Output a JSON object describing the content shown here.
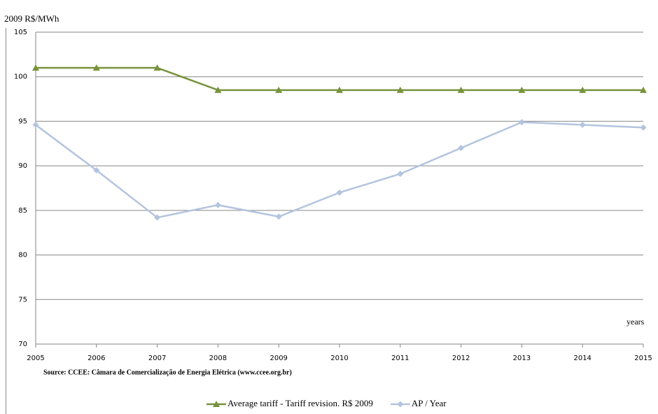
{
  "chart_data": {
    "type": "line",
    "y_label": "2009 R$/MWh",
    "x_label": "years",
    "note": "Source: CCEE:  Câmara de Comercialização de Energia Elétrica (www.ccee.org.br)",
    "x": [
      2005,
      2006,
      2007,
      2008,
      2009,
      2010,
      2011,
      2012,
      2013,
      2014,
      2015
    ],
    "xlim": [
      2005,
      2015
    ],
    "xticks": [
      2005,
      2006,
      2007,
      2008,
      2009,
      2010,
      2011,
      2012,
      2013,
      2014,
      2015
    ],
    "ylim": [
      70,
      105
    ],
    "yticks": [
      70,
      75,
      80,
      85,
      90,
      95,
      100,
      105
    ],
    "grid": true,
    "legend": "bottom",
    "series": [
      {
        "name": "Average tariff - Tariff revision. R$ 2009",
        "color": "#77933c",
        "marker": "triangle",
        "values": [
          101,
          101,
          101,
          98.5,
          98.5,
          98.5,
          98.5,
          98.5,
          98.5,
          98.5,
          98.5
        ]
      },
      {
        "name": "AP / Year",
        "color": "#b4c4de",
        "marker": "diamond",
        "values": [
          94.6,
          89.5,
          84.2,
          85.6,
          84.3,
          87.0,
          89.1,
          92.0,
          94.9,
          94.6,
          94.3
        ]
      }
    ]
  }
}
